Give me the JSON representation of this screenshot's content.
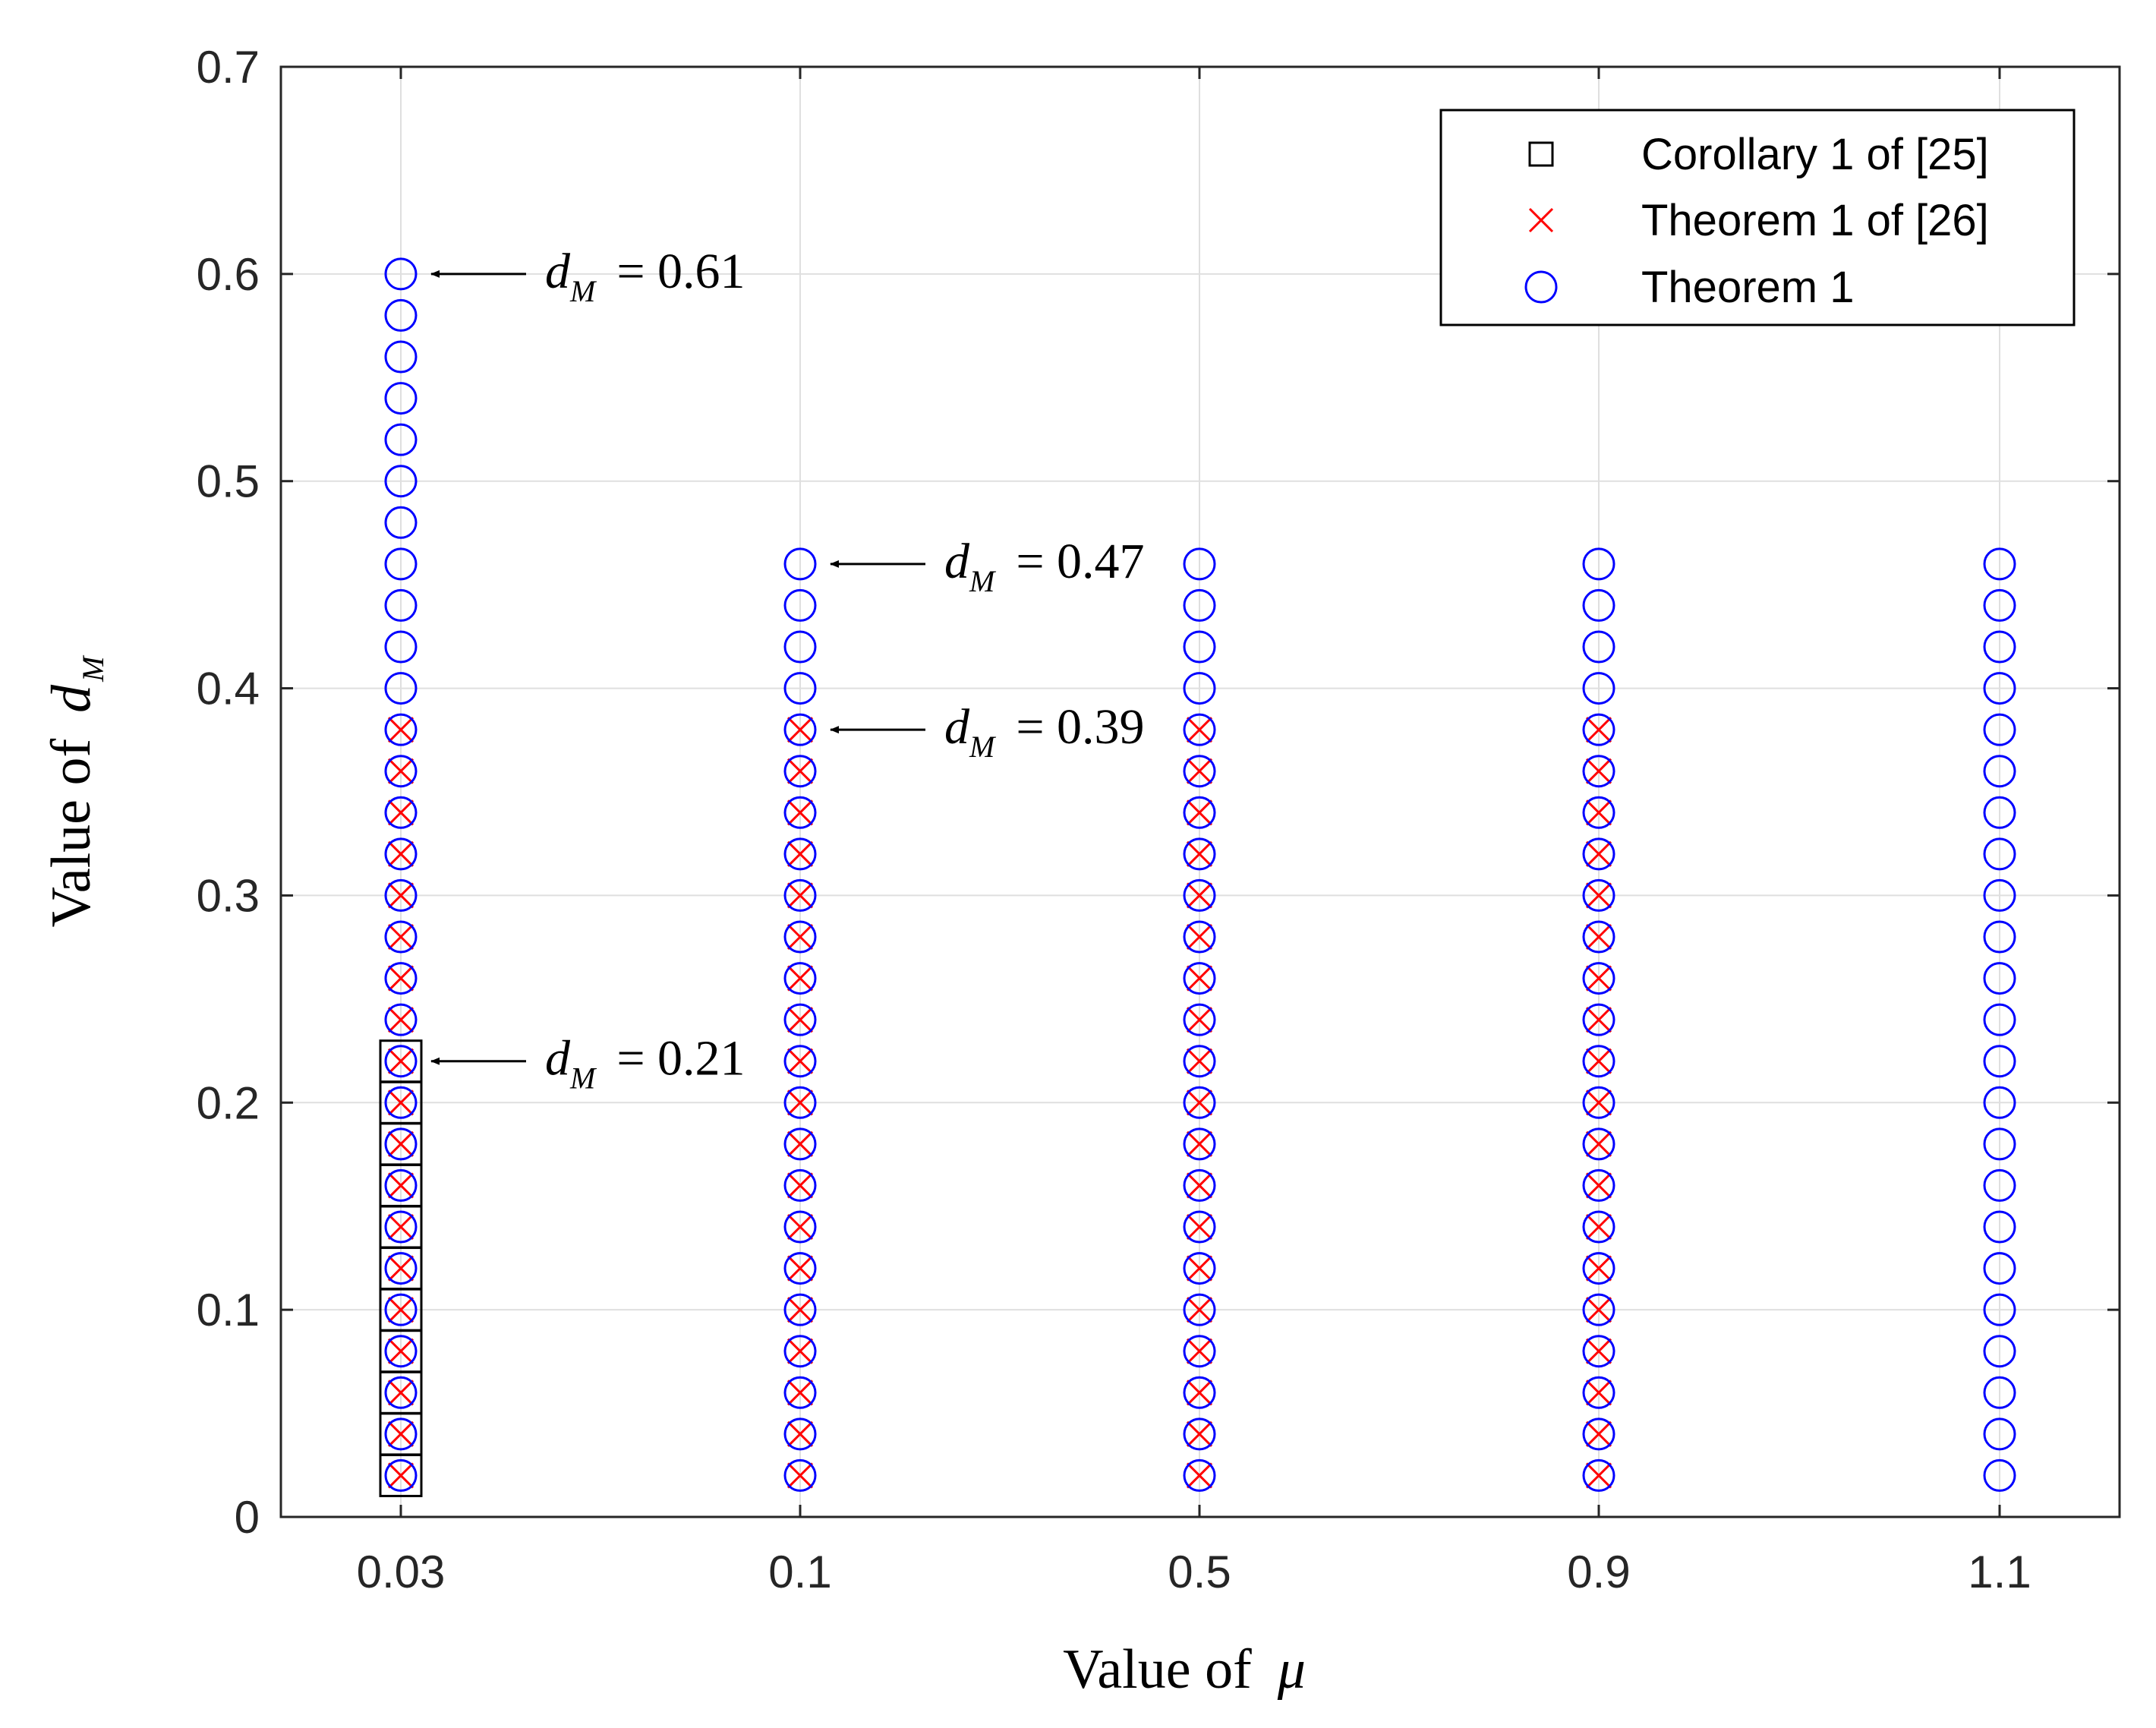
{
  "chart_data": {
    "type": "scatter",
    "xlabel": "Value of",
    "xlabel_var": "μ",
    "ylabel": "Value of",
    "ylabel_var": "d",
    "ylabel_sub": "M",
    "categories": [
      "0.03",
      "0.1",
      "0.5",
      "0.9",
      "1.1"
    ],
    "yticks": [
      "0",
      "0.1",
      "0.2",
      "0.3",
      "0.4",
      "0.5",
      "0.6",
      "0.7"
    ],
    "ylim": [
      0,
      0.7
    ],
    "grid": true,
    "legend_position": "top-right",
    "series": [
      {
        "name": "Corollary 1 of  [25]",
        "marker": "square",
        "color": "#000000",
        "points": [
          {
            "x": "0.03",
            "y": [
              0.02,
              0.04,
              0.06,
              0.08,
              0.1,
              0.12,
              0.14,
              0.16,
              0.18,
              0.2,
              0.22
            ]
          }
        ]
      },
      {
        "name": "Theorem 1 of  [26]",
        "marker": "x",
        "color": "#ff0000",
        "points": [
          {
            "x": "0.03",
            "y": [
              0.02,
              0.04,
              0.06,
              0.08,
              0.1,
              0.12,
              0.14,
              0.16,
              0.18,
              0.2,
              0.22,
              0.24,
              0.26,
              0.28,
              0.3,
              0.32,
              0.34,
              0.36,
              0.38
            ]
          },
          {
            "x": "0.1",
            "y": [
              0.02,
              0.04,
              0.06,
              0.08,
              0.1,
              0.12,
              0.14,
              0.16,
              0.18,
              0.2,
              0.22,
              0.24,
              0.26,
              0.28,
              0.3,
              0.32,
              0.34,
              0.36,
              0.38
            ]
          },
          {
            "x": "0.5",
            "y": [
              0.02,
              0.04,
              0.06,
              0.08,
              0.1,
              0.12,
              0.14,
              0.16,
              0.18,
              0.2,
              0.22,
              0.24,
              0.26,
              0.28,
              0.3,
              0.32,
              0.34,
              0.36,
              0.38
            ]
          },
          {
            "x": "0.9",
            "y": [
              0.02,
              0.04,
              0.06,
              0.08,
              0.1,
              0.12,
              0.14,
              0.16,
              0.18,
              0.2,
              0.22,
              0.24,
              0.26,
              0.28,
              0.3,
              0.32,
              0.34,
              0.36,
              0.38
            ]
          }
        ]
      },
      {
        "name": "Theorem 1",
        "marker": "circle",
        "color": "#0000ff",
        "points": [
          {
            "x": "0.03",
            "y": [
              0.02,
              0.04,
              0.06,
              0.08,
              0.1,
              0.12,
              0.14,
              0.16,
              0.18,
              0.2,
              0.22,
              0.24,
              0.26,
              0.28,
              0.3,
              0.32,
              0.34,
              0.36,
              0.38,
              0.4,
              0.42,
              0.44,
              0.46,
              0.48,
              0.5,
              0.52,
              0.54,
              0.56,
              0.58,
              0.6
            ]
          },
          {
            "x": "0.1",
            "y": [
              0.02,
              0.04,
              0.06,
              0.08,
              0.1,
              0.12,
              0.14,
              0.16,
              0.18,
              0.2,
              0.22,
              0.24,
              0.26,
              0.28,
              0.3,
              0.32,
              0.34,
              0.36,
              0.38,
              0.4,
              0.42,
              0.44,
              0.46
            ]
          },
          {
            "x": "0.5",
            "y": [
              0.02,
              0.04,
              0.06,
              0.08,
              0.1,
              0.12,
              0.14,
              0.16,
              0.18,
              0.2,
              0.22,
              0.24,
              0.26,
              0.28,
              0.3,
              0.32,
              0.34,
              0.36,
              0.38,
              0.4,
              0.42,
              0.44,
              0.46
            ]
          },
          {
            "x": "0.9",
            "y": [
              0.02,
              0.04,
              0.06,
              0.08,
              0.1,
              0.12,
              0.14,
              0.16,
              0.18,
              0.2,
              0.22,
              0.24,
              0.26,
              0.28,
              0.3,
              0.32,
              0.34,
              0.36,
              0.38,
              0.4,
              0.42,
              0.44,
              0.46
            ]
          },
          {
            "x": "1.1",
            "y": [
              0.02,
              0.04,
              0.06,
              0.08,
              0.1,
              0.12,
              0.14,
              0.16,
              0.18,
              0.2,
              0.22,
              0.24,
              0.26,
              0.28,
              0.3,
              0.32,
              0.34,
              0.36,
              0.38,
              0.4,
              0.42,
              0.44,
              0.46
            ]
          }
        ]
      }
    ],
    "annotations": [
      {
        "var": "d",
        "sub": "M",
        "value": "= 0.61",
        "x": "0.03",
        "y": 0.6
      },
      {
        "var": "d",
        "sub": "M",
        "value": "= 0.47",
        "x": "0.1",
        "y": 0.46
      },
      {
        "var": "d",
        "sub": "M",
        "value": "= 0.39",
        "x": "0.1",
        "y": 0.38
      },
      {
        "var": "d",
        "sub": "M",
        "value": "= 0.21",
        "x": "0.03",
        "y": 0.22
      }
    ]
  }
}
